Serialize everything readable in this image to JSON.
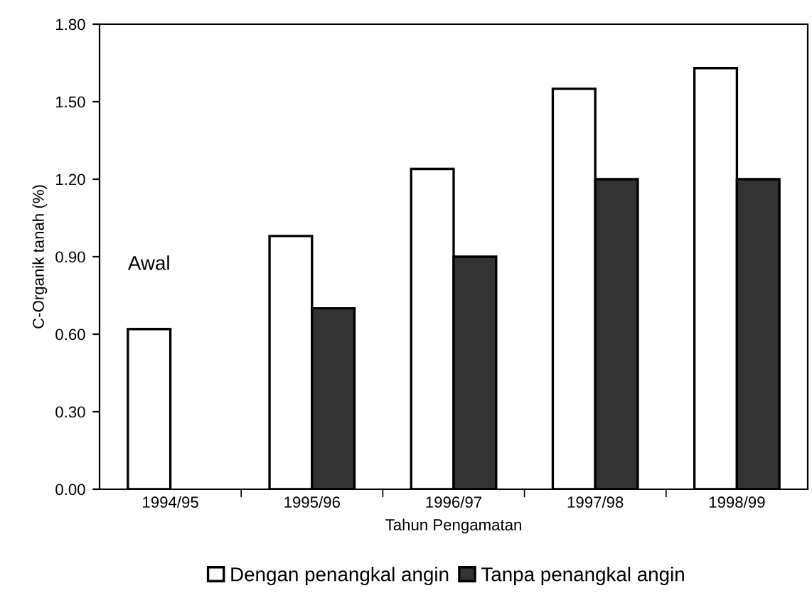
{
  "chart_data": {
    "type": "bar",
    "xlabel": "Tahun Pengamatan",
    "ylabel": "C-Organik tanah (%)",
    "categories": [
      "1994/95",
      "1995/96",
      "1996/97",
      "1997/98",
      "1998/99"
    ],
    "series": [
      {
        "name": "Dengan penangkal angin",
        "color": "#ffffff",
        "values": [
          0.62,
          0.98,
          1.24,
          1.55,
          1.63
        ]
      },
      {
        "name": "Tanpa penangkal angin",
        "color": "#333333",
        "values": [
          null,
          0.7,
          0.9,
          1.2,
          1.2
        ]
      }
    ],
    "ylim": [
      0,
      1.8
    ],
    "yticks": [
      {
        "value": 0,
        "label": "0.00"
      },
      {
        "value": 0.3,
        "label": "0.30"
      },
      {
        "value": 0.6,
        "label": "0.60"
      },
      {
        "value": 0.9,
        "label": "0.90"
      },
      {
        "value": 1.2,
        "label": "1.20"
      },
      {
        "value": 1.5,
        "label": "1.50"
      },
      {
        "value": 1.8,
        "label": "1.80"
      }
    ],
    "annotations": [
      {
        "text": "Awal",
        "x": "1994/95",
        "y": 0.62
      }
    ],
    "grid": false,
    "legend": "bottom"
  }
}
